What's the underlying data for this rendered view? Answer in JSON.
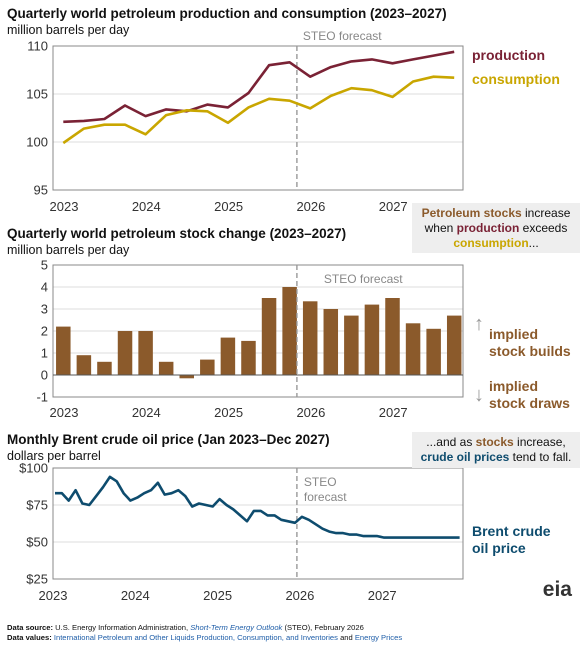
{
  "chart_data": [
    {
      "type": "line",
      "title": "Quarterly world petroleum production and consumption (2023–2027)",
      "ylabel": "million barrels per day",
      "ylim": [
        95,
        110
      ],
      "yticks": [
        "95",
        "100",
        "105",
        "110"
      ],
      "xticks": [
        "2023",
        "2024",
        "2025",
        "2026",
        "2027"
      ],
      "forecast_label": "STEO forecast",
      "x": [
        "2023Q1",
        "2023Q2",
        "2023Q3",
        "2023Q4",
        "2024Q1",
        "2024Q2",
        "2024Q3",
        "2024Q4",
        "2025Q1",
        "2025Q2",
        "2025Q3",
        "2025Q4",
        "2026Q1",
        "2026Q2",
        "2026Q3",
        "2026Q4",
        "2027Q1",
        "2027Q2",
        "2027Q3",
        "2027Q4"
      ],
      "forecast_start": "2026Q1",
      "series": [
        {
          "name": "production",
          "color": "#7a2235",
          "values": [
            102.1,
            102.2,
            102.4,
            103.8,
            102.7,
            103.4,
            103.2,
            103.9,
            103.6,
            105.1,
            108.0,
            108.3,
            106.8,
            107.8,
            108.4,
            108.6,
            108.2,
            108.6,
            109.0,
            109.4
          ]
        },
        {
          "name": "consumption",
          "color": "#c9a600",
          "values": [
            99.9,
            101.4,
            101.8,
            101.8,
            100.8,
            102.8,
            103.3,
            103.2,
            102.0,
            103.6,
            104.5,
            104.3,
            103.5,
            104.8,
            105.6,
            105.4,
            104.7,
            106.3,
            106.8,
            106.7
          ]
        }
      ]
    },
    {
      "type": "bar",
      "title": "Quarterly world petroleum stock change (2023–2027)",
      "ylabel": "million barrels per day",
      "ylim": [
        -1,
        5
      ],
      "yticks": [
        "-1",
        "0",
        "1",
        "2",
        "3",
        "4",
        "5"
      ],
      "xticks": [
        "2023",
        "2024",
        "2025",
        "2026",
        "2027"
      ],
      "forecast_label": "STEO forecast",
      "color": "#8b5a2b",
      "categories": [
        "2023Q1",
        "2023Q2",
        "2023Q3",
        "2023Q4",
        "2024Q1",
        "2024Q2",
        "2024Q3",
        "2024Q4",
        "2025Q1",
        "2025Q2",
        "2025Q3",
        "2025Q4",
        "2026Q1",
        "2026Q2",
        "2026Q3",
        "2026Q4",
        "2027Q1",
        "2027Q2",
        "2027Q3",
        "2027Q4"
      ],
      "values": [
        2.2,
        0.9,
        0.6,
        2.0,
        2.0,
        0.6,
        -0.15,
        0.7,
        1.7,
        1.55,
        3.5,
        4.0,
        3.35,
        3.0,
        2.7,
        3.2,
        3.5,
        2.35,
        2.1,
        2.7
      ]
    },
    {
      "type": "line",
      "title": "Monthly Brent crude oil price (Jan 2023–Dec 2027)",
      "ylabel": "dollars per barrel",
      "ylim": [
        25,
        100
      ],
      "yticks": [
        "$25",
        "$50",
        "$75",
        "$100"
      ],
      "xticks": [
        "2023",
        "2024",
        "2025",
        "2026",
        "2027"
      ],
      "forecast_label_line1": "STEO",
      "forecast_label_line2": "forecast",
      "series": [
        {
          "name": "Brent crude oil price",
          "color": "#0e4c6e",
          "values": [
            83,
            83,
            78,
            85,
            76,
            75,
            81,
            87,
            94,
            91,
            83,
            78,
            80,
            83,
            85,
            90,
            82,
            83,
            85,
            81,
            74,
            76,
            75,
            74,
            79,
            75,
            72,
            68,
            64,
            71,
            71,
            68,
            68,
            65,
            64,
            63,
            67,
            65,
            62,
            59,
            57,
            56,
            56,
            55,
            55,
            54,
            54,
            54,
            53,
            53,
            53,
            53,
            53,
            53,
            53,
            53,
            53,
            53,
            53,
            53
          ]
        }
      ]
    }
  ],
  "annotations": {
    "production_label": "production",
    "consumption_label": "consumption",
    "callout1": {
      "p1": "Petroleum stocks",
      "p2": " increase when ",
      "p3": "production",
      "p4": " exceeds ",
      "p5": "consumption",
      "p6": "..."
    },
    "callout2": {
      "p1": "...and as ",
      "p2": "stocks",
      "p3": " increase, ",
      "p4": "crude oil prices",
      "p5": " tend to fall."
    },
    "builds_line1": "implied",
    "builds_line2": "stock builds",
    "draws_line1": "implied",
    "draws_line2": "stock draws",
    "brent_line1": "Brent crude",
    "brent_line2": "oil price",
    "arrow_up": "↑",
    "arrow_down": "↓"
  },
  "footer": {
    "source_label": "Data source:",
    "source_text1": " U.S. Energy Information Administration, ",
    "source_italic": "Short-Term Energy Outlook",
    "source_text2": " (STEO), February 2026",
    "values_label": "Data values:",
    "values_link1": " International Petroleum and Other Liquids Production, Consumption, and Inventories",
    "values_and": " and ",
    "values_link2": "Energy Prices",
    "logo": "eia"
  }
}
